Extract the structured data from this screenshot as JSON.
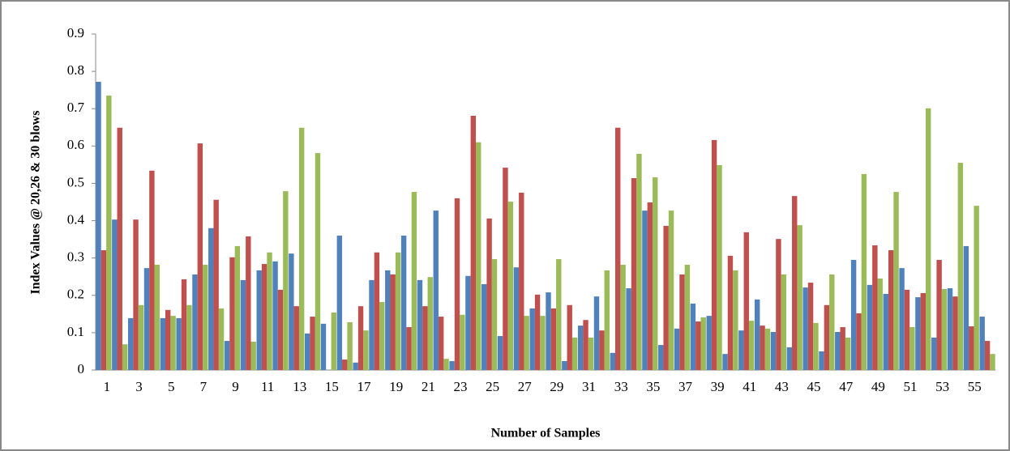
{
  "chart_data": {
    "type": "bar",
    "x_label": "Number of Samples",
    "y_label": "Index Values @ 20,26 & 30 blows",
    "categories": [
      1,
      null,
      3,
      null,
      5,
      null,
      7,
      null,
      9,
      null,
      11,
      null,
      13,
      null,
      15,
      null,
      17,
      null,
      19,
      null,
      21,
      null,
      23,
      null,
      25,
      null,
      27,
      null,
      29,
      null,
      31,
      null,
      33,
      null,
      35,
      null,
      37,
      null,
      39,
      null,
      41,
      null,
      43,
      null,
      45,
      null,
      47,
      null,
      49,
      null,
      51,
      null,
      53,
      null,
      55,
      null
    ],
    "series": [
      {
        "color": "#4f81bd",
        "values": [
          0.772,
          0.403,
          0.139,
          0.273,
          0.139,
          0.139,
          0.256,
          0.38,
          0.078,
          0.241,
          0.267,
          0.291,
          0.312,
          0.098,
          0.124,
          0.36,
          0.02,
          0.241,
          0.267,
          0.36,
          0.241,
          0.427,
          0.024,
          0.252,
          0.23,
          0.091,
          0.275,
          0.165,
          0.208,
          0.024,
          0.119,
          0.197,
          0.046,
          0.219,
          0.427,
          0.067,
          0.111,
          0.178,
          0.145,
          0.043,
          0.106,
          0.189,
          0.102,
          0.061,
          0.221,
          0.05,
          0.102,
          0.295,
          0.228,
          0.204,
          0.273,
          0.195,
          0.087,
          0.219,
          0.332,
          0.143
        ]
      },
      {
        "color": "#c0504d",
        "values": [
          0.321,
          0.649,
          0.403,
          0.534,
          0.161,
          0.243,
          0.607,
          0.456,
          0.302,
          0.358,
          0.284,
          0.215,
          0.171,
          0.143,
          0,
          0.028,
          0.171,
          0.315,
          0.256,
          0.115,
          0.171,
          0.143,
          0.46,
          0.681,
          0.406,
          0.542,
          0.475,
          0.202,
          0.165,
          0.174,
          0.134,
          0.106,
          0.649,
          0.514,
          0.449,
          0.386,
          0.256,
          0.13,
          0.616,
          0.306,
          0.369,
          0.119,
          0.351,
          0.466,
          0.234,
          0.174,
          0.115,
          0.152,
          0.334,
          0.321,
          0.215,
          0.206,
          0.295,
          0.197,
          0.117,
          0.078
        ]
      },
      {
        "color": "#9bbb59",
        "values": [
          0.735,
          0.069,
          0.174,
          0.282,
          0.145,
          0.174,
          0.282,
          0.165,
          0.332,
          0.076,
          0.315,
          0.479,
          0.649,
          0.581,
          0.154,
          0.128,
          0.106,
          0.182,
          0.315,
          0.477,
          0.249,
          0.03,
          0.148,
          0.61,
          0.297,
          0.451,
          0.145,
          0.145,
          0.297,
          0.087,
          0.087,
          0.267,
          0.282,
          0.579,
          0.516,
          0.427,
          0.282,
          0.141,
          0.549,
          0.267,
          0.132,
          0.111,
          0.256,
          0.388,
          0.126,
          0.256,
          0.087,
          0.525,
          0.245,
          0.477,
          0.115,
          0.701,
          0.217,
          0.555,
          0.44,
          0.043
        ]
      }
    ],
    "ylim": [
      0,
      0.9
    ],
    "yticks": [
      0,
      0.1,
      0.2,
      0.3,
      0.4,
      0.5,
      0.6,
      0.7,
      0.8,
      0.9
    ],
    "grid": false
  }
}
